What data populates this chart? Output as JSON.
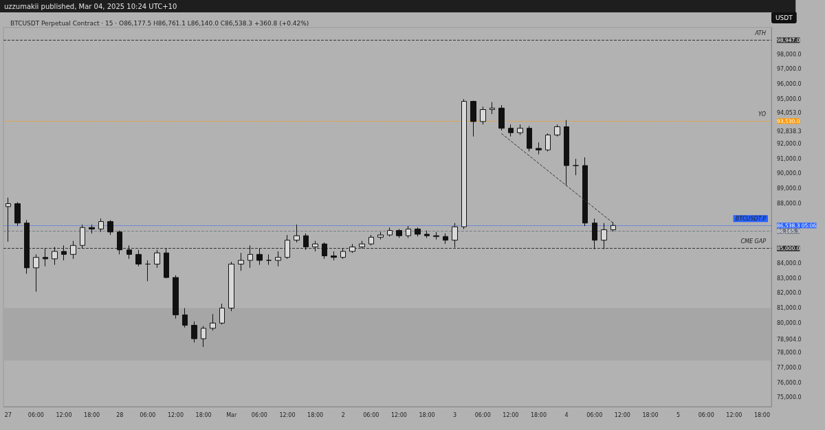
{
  "chart_data": {
    "type": "candlestick",
    "title": "BTCUSDT Perpetual Contract · 15 · O86,177.5 H86,761.1 L86,140.0 C86,538.3 +360.8 (+0.42%)",
    "subtitle": "uzzumakii published, Mar 04, 2025 10:24 UTC+10",
    "ylabel": "USDT",
    "color": "#111111",
    "x": [
      "2025-02-27T00:00",
      "2025-02-27T02:00",
      "2025-02-27T04:00",
      "2025-02-27T06:00",
      "2025-02-27T08:00",
      "2025-02-27T10:00",
      "2025-02-27T12:00",
      "2025-02-27T14:00",
      "2025-02-27T16:00",
      "2025-02-27T18:00",
      "2025-02-27T20:00",
      "2025-02-27T22:00",
      "2025-02-28T00:00",
      "2025-02-28T02:00",
      "2025-02-28T04:00",
      "2025-02-28T06:00",
      "2025-02-28T08:00",
      "2025-02-28T10:00",
      "2025-02-28T12:00",
      "2025-02-28T14:00",
      "2025-02-28T16:00",
      "2025-02-28T18:00",
      "2025-02-28T20:00",
      "2025-02-28T22:00",
      "2025-03-01T00:00",
      "2025-03-01T02:00",
      "2025-03-01T04:00",
      "2025-03-01T06:00",
      "2025-03-01T08:00",
      "2025-03-01T10:00",
      "2025-03-01T12:00",
      "2025-03-01T14:00",
      "2025-03-01T16:00",
      "2025-03-01T18:00",
      "2025-03-01T20:00",
      "2025-03-01T22:00",
      "2025-03-02T00:00",
      "2025-03-02T02:00",
      "2025-03-02T04:00",
      "2025-03-02T06:00",
      "2025-03-02T08:00",
      "2025-03-02T10:00",
      "2025-03-02T12:00",
      "2025-03-02T14:00",
      "2025-03-02T16:00",
      "2025-03-02T18:00",
      "2025-03-02T20:00",
      "2025-03-02T22:00",
      "2025-03-03T00:00",
      "2025-03-03T02:00",
      "2025-03-03T04:00",
      "2025-03-03T06:00",
      "2025-03-03T08:00",
      "2025-03-03T10:00",
      "2025-03-03T12:00",
      "2025-03-03T14:00",
      "2025-03-03T16:00",
      "2025-03-03T18:00",
      "2025-03-03T20:00",
      "2025-03-03T22:00",
      "2025-03-04T00:00",
      "2025-03-04T02:00",
      "2025-03-04T04:00",
      "2025-03-04T06:00",
      "2025-03-04T08:00",
      "2025-03-04T10:00"
    ],
    "ohlc": [
      [
        87800,
        88400,
        85450,
        88000
      ],
      [
        88000,
        88100,
        86500,
        86700
      ],
      [
        86700,
        86900,
        83300,
        83700
      ],
      [
        83700,
        84600,
        82100,
        84400
      ],
      [
        84400,
        85000,
        83800,
        84300
      ],
      [
        84300,
        85100,
        83900,
        84800
      ],
      [
        84800,
        85200,
        84200,
        84600
      ],
      [
        84600,
        85500,
        84300,
        85200
      ],
      [
        85200,
        86600,
        85000,
        86400
      ],
      [
        86400,
        86600,
        86000,
        86300
      ],
      [
        86300,
        87000,
        86100,
        86800
      ],
      [
        86800,
        86900,
        85900,
        86100
      ],
      [
        86100,
        86200,
        84600,
        84900
      ],
      [
        84900,
        85200,
        84300,
        84600
      ],
      [
        84600,
        84900,
        83800,
        83950
      ],
      [
        83950,
        84200,
        82800,
        83950
      ],
      [
        83950,
        84900,
        83700,
        84700
      ],
      [
        84700,
        85000,
        83000,
        83050
      ],
      [
        83050,
        83200,
        80300,
        80550
      ],
      [
        80550,
        81000,
        79700,
        79850
      ],
      [
        79850,
        80100,
        78700,
        78950
      ],
      [
        78950,
        79800,
        78400,
        79650
      ],
      [
        79650,
        80600,
        79500,
        80000
      ],
      [
        80000,
        81300,
        79900,
        81000
      ],
      [
        81000,
        84100,
        80800,
        83950
      ],
      [
        83950,
        84700,
        83500,
        84200
      ],
      [
        84200,
        85200,
        83700,
        84600
      ],
      [
        84600,
        85000,
        83900,
        84200
      ],
      [
        84200,
        84600,
        83900,
        84200
      ],
      [
        84200,
        84800,
        83800,
        84400
      ],
      [
        84400,
        85900,
        84300,
        85550
      ],
      [
        85550,
        86600,
        85400,
        85850
      ],
      [
        85850,
        86000,
        84900,
        85100
      ],
      [
        85100,
        85500,
        84800,
        85300
      ],
      [
        85300,
        85400,
        84300,
        84500
      ],
      [
        84500,
        84800,
        84200,
        84400
      ],
      [
        84400,
        85000,
        84300,
        84800
      ],
      [
        84800,
        85300,
        84700,
        85100
      ],
      [
        85100,
        85500,
        85000,
        85300
      ],
      [
        85300,
        85900,
        85200,
        85750
      ],
      [
        85750,
        86100,
        85600,
        85900
      ],
      [
        85900,
        86400,
        85800,
        86200
      ],
      [
        86200,
        86300,
        85700,
        85850
      ],
      [
        85850,
        86500,
        85700,
        86300
      ],
      [
        86300,
        86400,
        85800,
        85950
      ],
      [
        85950,
        86200,
        85700,
        85850
      ],
      [
        85850,
        86100,
        85600,
        85800
      ],
      [
        85800,
        86000,
        85300,
        85550
      ],
      [
        85550,
        86700,
        85050,
        86450
      ],
      [
        86450,
        95000,
        86300,
        94850
      ],
      [
        94850,
        94900,
        92500,
        93500
      ],
      [
        93500,
        94500,
        93300,
        94300
      ],
      [
        94300,
        94800,
        94000,
        94400
      ],
      [
        94400,
        94600,
        92900,
        93050
      ],
      [
        93050,
        93300,
        92500,
        92750
      ],
      [
        92750,
        93300,
        92600,
        93050
      ],
      [
        93050,
        93200,
        91500,
        91700
      ],
      [
        91700,
        92100,
        91300,
        91600
      ],
      [
        91600,
        92700,
        91500,
        92600
      ],
      [
        92600,
        93300,
        92500,
        93150
      ],
      [
        93150,
        93600,
        89200,
        90550
      ],
      [
        90550,
        91000,
        89900,
        90550
      ],
      [
        90550,
        91100,
        86500,
        86700
      ],
      [
        86700,
        87000,
        84950,
        85550
      ],
      [
        85550,
        86700,
        84950,
        86250
      ],
      [
        86250,
        86761.1,
        86140,
        86538.3
      ]
    ],
    "series": [
      {
        "type": "line",
        "x": [
          "2025-03-03T10:00",
          "2025-03-04T10:00"
        ],
        "values": [
          92700,
          86700
        ],
        "color": "#333333",
        "line_style": "dashed",
        "marker": "none"
      }
    ],
    "xlim": [
      "2025-02-26T23:00",
      "2025-03-05T20:00"
    ],
    "xticks": [
      {
        "value": "2025-02-27T00:00",
        "label": "27"
      },
      {
        "value": "2025-02-27T06:00",
        "label": "06:00"
      },
      {
        "value": "2025-02-27T12:00",
        "label": "12:00"
      },
      {
        "value": "2025-02-27T18:00",
        "label": "18:00"
      },
      {
        "value": "2025-02-28T00:00",
        "label": "28"
      },
      {
        "value": "2025-02-28T06:00",
        "label": "06:00"
      },
      {
        "value": "2025-02-28T12:00",
        "label": "12:00"
      },
      {
        "value": "2025-02-28T18:00",
        "label": "18:00"
      },
      {
        "value": "2025-03-01T00:00",
        "label": "Mar"
      },
      {
        "value": "2025-03-01T06:00",
        "label": "06:00"
      },
      {
        "value": "2025-03-01T12:00",
        "label": "12:00"
      },
      {
        "value": "2025-03-01T18:00",
        "label": "18:00"
      },
      {
        "value": "2025-03-02T00:00",
        "label": "2"
      },
      {
        "value": "2025-03-02T06:00",
        "label": "06:00"
      },
      {
        "value": "2025-03-02T12:00",
        "label": "12:00"
      },
      {
        "value": "2025-03-02T18:00",
        "label": "18:00"
      },
      {
        "value": "2025-03-03T00:00",
        "label": "3"
      },
      {
        "value": "2025-03-03T06:00",
        "label": "06:00"
      },
      {
        "value": "2025-03-03T12:00",
        "label": "12:00"
      },
      {
        "value": "2025-03-03T18:00",
        "label": "18:00"
      },
      {
        "value": "2025-03-04T00:00",
        "label": "4"
      },
      {
        "value": "2025-03-04T06:00",
        "label": "06:00"
      },
      {
        "value": "2025-03-04T12:00",
        "label": "12:00"
      },
      {
        "value": "2025-03-04T18:00",
        "label": "18:00"
      },
      {
        "value": "2025-03-05T00:00",
        "label": "5"
      },
      {
        "value": "2025-03-05T06:00",
        "label": "06:00"
      },
      {
        "value": "2025-03-05T12:00",
        "label": "12:00"
      },
      {
        "value": "2025-03-05T18:00",
        "label": "18:00"
      }
    ],
    "ylim": [
      74400,
      99800
    ],
    "yticks": [
      {
        "value": 75000,
        "label": "75,000.0"
      },
      {
        "value": 76000,
        "label": "76,000.0"
      },
      {
        "value": 77000,
        "label": "77,000.0"
      },
      {
        "value": 78000,
        "label": "78,000.0"
      },
      {
        "value": 78904,
        "label": "78,904.0"
      },
      {
        "value": 80000,
        "label": "80,000.0"
      },
      {
        "value": 81000,
        "label": "81,000.0"
      },
      {
        "value": 82000,
        "label": "82,000.0"
      },
      {
        "value": 83000,
        "label": "83,000.0"
      },
      {
        "value": 84000,
        "label": "84,000.0"
      },
      {
        "value": 85000,
        "label": "85,000.0"
      },
      {
        "value": 86165.3,
        "label": "86,165.3"
      },
      {
        "value": 86538.3,
        "label": "86,538.3 05:06"
      },
      {
        "value": 88000,
        "label": "88,000.0"
      },
      {
        "value": 89000,
        "label": "89,000.0"
      },
      {
        "value": 90000,
        "label": "90,000.0"
      },
      {
        "value": 91000,
        "label": "91,000.0"
      },
      {
        "value": 92000,
        "label": "92,000.0"
      },
      {
        "value": 92838.3,
        "label": "92,838.3"
      },
      {
        "value": 93530,
        "label": "93,530.0"
      },
      {
        "value": 94053,
        "label": "94,053.0"
      },
      {
        "value": 95000,
        "label": "95,000.0"
      },
      {
        "value": 96000,
        "label": "96,000.0"
      },
      {
        "value": 97000,
        "label": "97,000.0"
      },
      {
        "value": 98000,
        "label": "98,000.0"
      },
      {
        "value": 98947,
        "label": "98,947.0"
      }
    ],
    "ref_lines": [
      {
        "axis": "y",
        "value": 98947,
        "label": "ATH",
        "color": "#333333",
        "line_style": "dashed"
      },
      {
        "axis": "y",
        "value": 93530,
        "label": "YO",
        "color": "#ff9800",
        "line_style": "dotted"
      },
      {
        "axis": "y",
        "value": 85000,
        "label": "CME GAP",
        "color": "#333333",
        "line_style": "dashed"
      },
      {
        "axis": "y",
        "value": 86538.3,
        "label": "BTCUSDT.P",
        "color": "#2962ff",
        "line_style": "dotted"
      },
      {
        "axis": "y",
        "value": 86165.3,
        "label": null,
        "color": "#787b86",
        "line_style": "dashed"
      }
    ],
    "bands": [
      {
        "axis": "y",
        "from": 77500,
        "to": 81000,
        "label": null,
        "color": "#a6a6a6"
      }
    ],
    "grid": false
  }
}
